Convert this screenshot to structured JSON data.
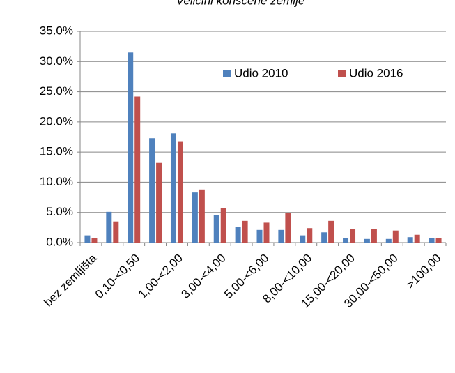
{
  "chart_data": {
    "type": "bar",
    "title": "Veličini korišćene zemlje",
    "categories": [
      "bez zemljišta",
      null,
      "0,10-<0,50",
      null,
      "1,00-<2,00",
      null,
      "3,00-<4,00",
      null,
      "5,00-<6,00",
      null,
      "8,00-<10,00",
      null,
      "15,00-<20,00",
      null,
      "30,00-<50,00",
      null,
      ">100,00"
    ],
    "series": [
      {
        "name": "Udio 2010",
        "color": "#4f81bd",
        "values": [
          1.2,
          5.1,
          31.5,
          17.3,
          18.1,
          8.3,
          4.6,
          2.6,
          2.1,
          2.1,
          1.2,
          1.7,
          0.7,
          0.6,
          0.6,
          0.9,
          0.8
        ]
      },
      {
        "name": "Udio 2016",
        "color": "#c0504d",
        "values": [
          0.7,
          3.5,
          24.2,
          13.2,
          16.8,
          8.8,
          5.7,
          3.6,
          3.3,
          4.9,
          2.4,
          3.6,
          2.3,
          2.3,
          2.0,
          1.3,
          0.7
        ]
      }
    ],
    "ylim": [
      0,
      35
    ],
    "yticks": [
      {
        "value": 0,
        "label": "0.0%"
      },
      {
        "value": 5,
        "label": "5.0%"
      },
      {
        "value": 10,
        "label": "10.0%"
      },
      {
        "value": 15,
        "label": "15.0%"
      },
      {
        "value": 20,
        "label": "20.0%"
      },
      {
        "value": 25,
        "label": "25.0%"
      },
      {
        "value": 30,
        "label": "30.0%"
      },
      {
        "value": 35,
        "label": "35.0%"
      }
    ],
    "grid": true,
    "legend": "top-right"
  }
}
